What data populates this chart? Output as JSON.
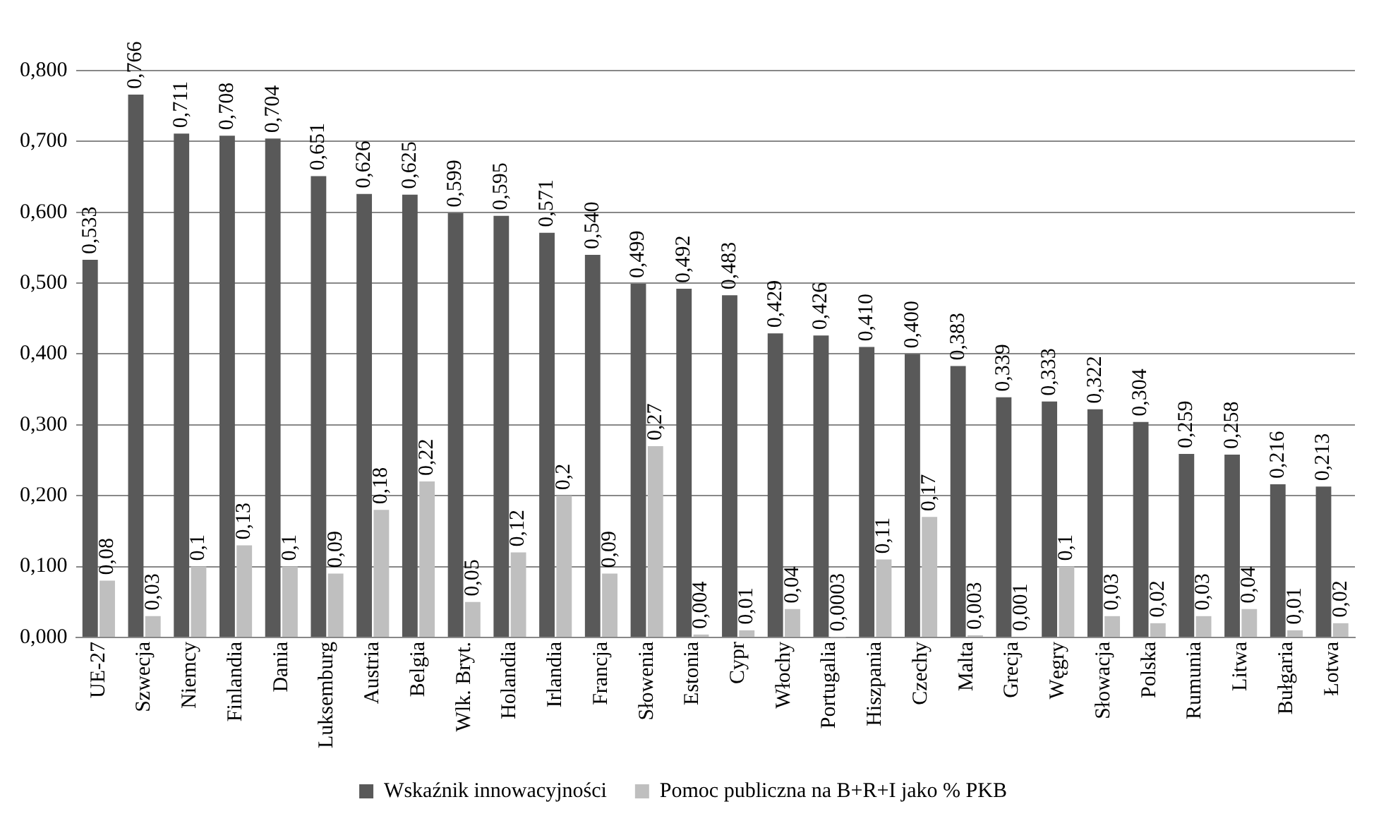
{
  "chart_data": {
    "type": "bar",
    "categories": [
      "UE-27",
      "Szwecja",
      "Niemcy",
      "Finlandia",
      "Dania",
      "Luksemburg",
      "Austria",
      "Belgia",
      "Wlk. Bryt.",
      "Holandia",
      "Irlandia",
      "Francja",
      "Słowenia",
      "Estonia",
      "Cypr",
      "Włochy",
      "Portugalia",
      "Hiszpania",
      "Czechy",
      "Malta",
      "Grecja",
      "Węgry",
      "Słowacja",
      "Polska",
      "Rumunia",
      "Litwa",
      "Bułgaria",
      "Łotwa"
    ],
    "series": [
      {
        "name": "Wskaźnik innowacyjności",
        "color": "#595959",
        "values": [
          0.533,
          0.766,
          0.711,
          0.708,
          0.704,
          0.651,
          0.626,
          0.625,
          0.599,
          0.595,
          0.571,
          0.54,
          0.499,
          0.492,
          0.483,
          0.429,
          0.426,
          0.41,
          0.4,
          0.383,
          0.339,
          0.333,
          0.322,
          0.304,
          0.259,
          0.258,
          0.216,
          0.213
        ],
        "value_labels": [
          "0,533",
          "0,766",
          "0,711",
          "0,708",
          "0,704",
          "0,651",
          "0,626",
          "0,625",
          "0,599",
          "0,595",
          "0,571",
          "0,540",
          "0,499",
          "0,492",
          "0,483",
          "0,429",
          "0,426",
          "0,410",
          "0,400",
          "0,383",
          "0,339",
          "0,333",
          "0,322",
          "0,304",
          "0,259",
          "0,258",
          "0,216",
          "0,213"
        ]
      },
      {
        "name": "Pomoc publiczna na B+R+I jako % PKB",
        "color": "#bfbfbf",
        "values": [
          0.08,
          0.03,
          0.1,
          0.13,
          0.1,
          0.09,
          0.18,
          0.22,
          0.05,
          0.12,
          0.2,
          0.09,
          0.27,
          0.004,
          0.01,
          0.04,
          0.0003,
          0.11,
          0.17,
          0.003,
          0.001,
          0.1,
          0.03,
          0.02,
          0.03,
          0.04,
          0.01,
          0.02
        ],
        "value_labels": [
          "0,08",
          "0,03",
          "0,1",
          "0,13",
          "0,1",
          "0,09",
          "0,18",
          "0,22",
          "0,05",
          "0,12",
          "0,2",
          "0,09",
          "0,27",
          "0,004",
          "0,01",
          "0,04",
          "0,0003",
          "0,11",
          "0,17",
          "0,003",
          "0,001",
          "0,1",
          "0,03",
          "0,02",
          "0,03",
          "0,04",
          "0,01",
          "0,02"
        ]
      }
    ],
    "ylim": [
      0,
      0.8
    ],
    "yticks": [
      {
        "value": 0,
        "label": "0,000"
      },
      {
        "value": 0.1,
        "label": "0,100"
      },
      {
        "value": 0.2,
        "label": "0,200"
      },
      {
        "value": 0.3,
        "label": "0,300"
      },
      {
        "value": 0.4,
        "label": "0,400"
      },
      {
        "value": 0.5,
        "label": "0,500"
      },
      {
        "value": 0.6,
        "label": "0,600"
      },
      {
        "value": 0.7,
        "label": "0,700"
      },
      {
        "value": 0.8,
        "label": "0,800"
      }
    ],
    "grid": "y",
    "legend": "bottom"
  }
}
